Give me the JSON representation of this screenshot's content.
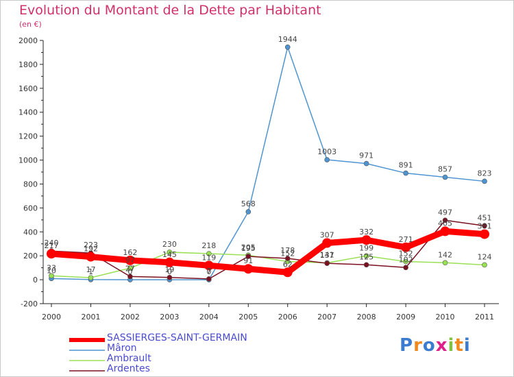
{
  "title": "Evolution du Montant de la Dette par Habitant",
  "unit_label": "(en €)",
  "logo": {
    "text": "Proxiti",
    "colors": [
      "#3b7bd0",
      "#f08a1e",
      "#3b7bd0",
      "#e0208a",
      "#7fc241",
      "#f08a1e",
      "#3b7bd0"
    ]
  },
  "chart_data": {
    "type": "line",
    "x": [
      "2000",
      "2001",
      "2002",
      "2003",
      "2004",
      "2005",
      "2006",
      "2007",
      "2008",
      "2009",
      "2010",
      "2011"
    ],
    "ylim": [
      -200,
      2000
    ],
    "yticks": [
      "-200",
      "0",
      "200",
      "400",
      "600",
      "800",
      "1000",
      "1200",
      "1400",
      "1600",
      "1800",
      "2000"
    ],
    "grid": false,
    "legend_position": "bottom-left",
    "series": [
      {
        "name": "SASSIERGES-SAINT-GERMAIN",
        "color": "#ff0000",
        "values": [
          217,
          192,
          162,
          145,
          119,
          91,
          62,
          307,
          332,
          271,
          405,
          381
        ],
        "labels": [
          "217",
          "192",
          "162",
          "145",
          "119",
          "91",
          "62",
          "307",
          "332",
          "271",
          "405",
          "381"
        ]
      },
      {
        "name": "Mâron",
        "color": "#4e94d0",
        "values": [
          10,
          1,
          0,
          0,
          0,
          568,
          1944,
          1003,
          971,
          891,
          857,
          823
        ],
        "labels": [
          "10",
          "1",
          "0",
          "0",
          "0",
          "568",
          "1944",
          "1003",
          "971",
          "891",
          "857",
          "823"
        ]
      },
      {
        "name": "Ambrault",
        "color": "#99e055",
        "values": [
          33,
          17,
          97,
          230,
          218,
          205,
          152,
          141,
          199,
          152,
          142,
          124
        ],
        "labels": [
          "33",
          "17",
          "97",
          "230",
          "218",
          "205",
          "152",
          "141",
          "199",
          "152",
          "142",
          "124"
        ]
      },
      {
        "name": "Ardentes",
        "color": "#7a1020",
        "values": [
          240,
          223,
          27,
          19,
          7,
          195,
          178,
          137,
          125,
          102,
          497,
          451
        ],
        "labels": [
          "240",
          "223",
          "27",
          "19",
          "7",
          "195",
          "178",
          "137",
          "125",
          "102",
          "497",
          "451"
        ]
      }
    ]
  }
}
